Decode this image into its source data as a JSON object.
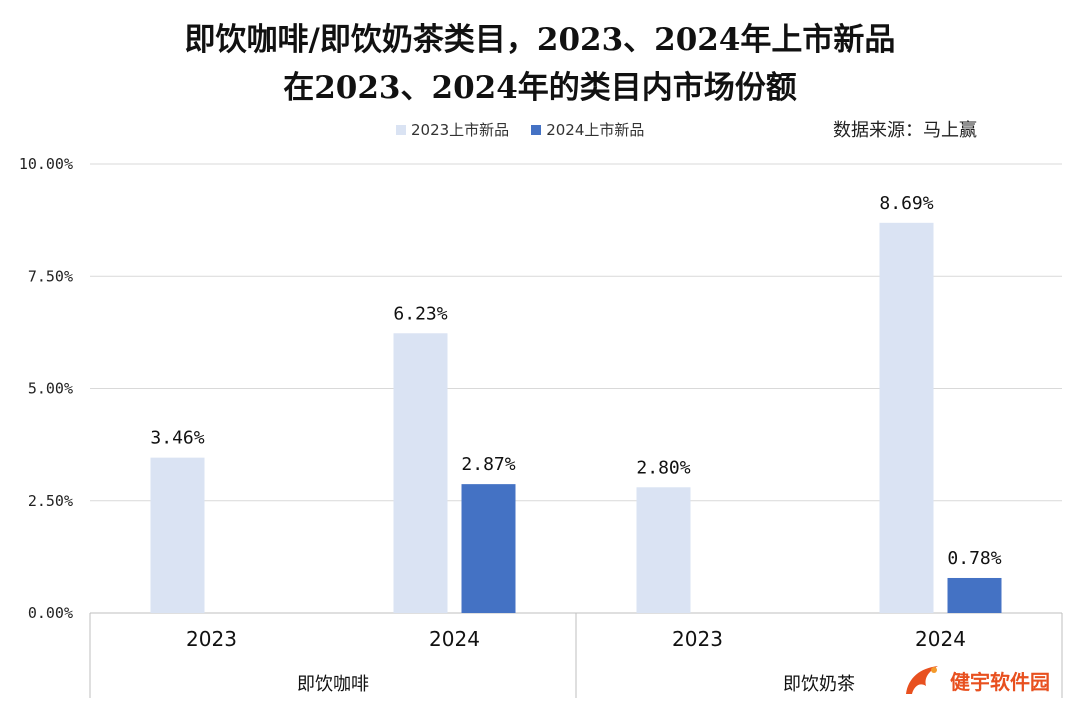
{
  "title_line1": "即饮咖啡/即饮奶茶类目，2023、2024年上市新品",
  "title_line2": "在2023、2024年的类目内市场份额",
  "source": "数据来源：马上赢",
  "watermark": "健宇软件园",
  "colors": {
    "series2023": "#dae3f3",
    "series2024": "#4472c4",
    "grid": "#d9d9d9",
    "axis": "#bfbfbf"
  },
  "chart_data": {
    "type": "bar",
    "title": "即饮咖啡/即饮奶茶类目，2023、2024年上市新品在2023、2024年的类目内市场份额",
    "groups": [
      "即饮咖啡",
      "即饮奶茶"
    ],
    "categories": [
      "2023",
      "2024"
    ],
    "series": [
      {
        "name": "2023上市新品",
        "values": [
          [
            3.46,
            6.23
          ],
          [
            2.8,
            8.69
          ]
        ]
      },
      {
        "name": "2024上市新品",
        "values": [
          [
            null,
            2.87
          ],
          [
            null,
            0.78
          ]
        ]
      }
    ],
    "data_labels": {
      "2023上市新品": [
        [
          "3.46%",
          "6.23%"
        ],
        [
          "2.80%",
          "8.69%"
        ]
      ],
      "2024上市新品": [
        [
          null,
          "2.87%"
        ],
        [
          null,
          "0.78%"
        ]
      ]
    },
    "yticks": [
      "0.00%",
      "2.50%",
      "5.00%",
      "7.50%",
      "10.00%"
    ],
    "ylim": [
      0,
      10
    ],
    "grid": true,
    "legend_position": "top"
  }
}
